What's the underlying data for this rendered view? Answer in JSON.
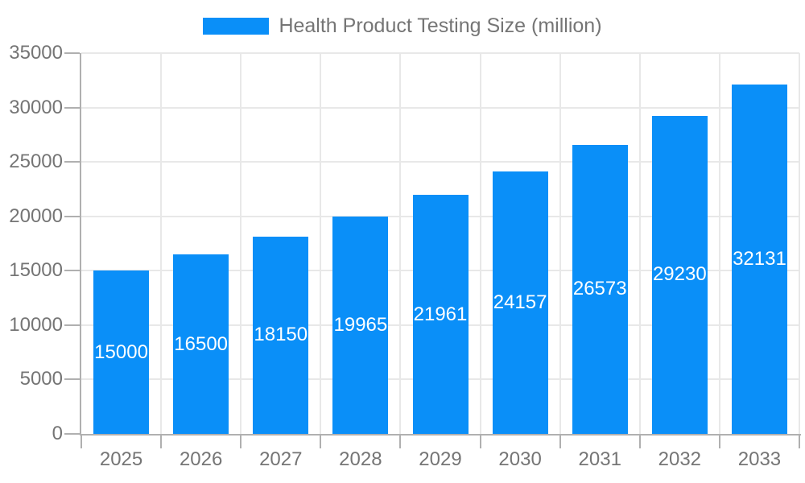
{
  "chart_data": {
    "type": "bar",
    "title": "Health Product Testing Size (million)",
    "categories": [
      "2025",
      "2026",
      "2027",
      "2028",
      "2029",
      "2030",
      "2031",
      "2032",
      "2033"
    ],
    "series": [
      {
        "name": "Health Product Testing Size (million)",
        "values": [
          15000,
          16500,
          18150,
          19965,
          21961,
          24157,
          26573,
          29230,
          32131
        ]
      }
    ],
    "value_labels": "inside-center",
    "xlabel": "",
    "ylabel": "",
    "ylim": [
      0,
      35000
    ],
    "yticks": [
      0,
      5000,
      10000,
      15000,
      20000,
      25000,
      30000,
      35000
    ],
    "grid": true,
    "legend_position": "top-center"
  },
  "colors": {
    "bar": "#0a8ff8",
    "grid": "#e8e8e8",
    "axis": "#b0b0b0",
    "label_text": "#757575",
    "value_text": "#ffffff",
    "background": "#ffffff"
  }
}
